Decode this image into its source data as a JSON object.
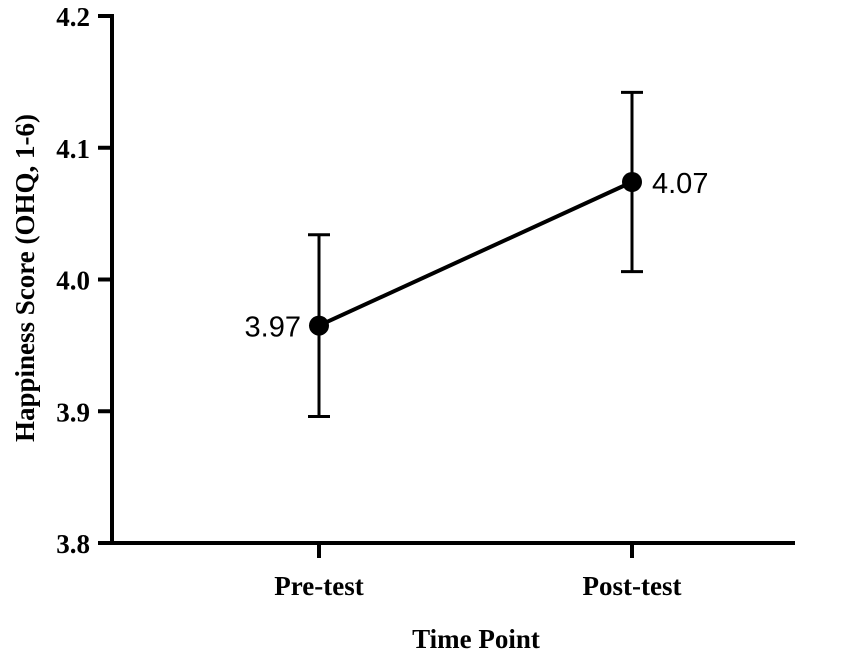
{
  "chart_data": {
    "type": "line",
    "title": "",
    "xlabel": "Time Point",
    "ylabel": "Happiness Score (OHQ, 1-6)",
    "ylim": [
      3.8,
      4.2
    ],
    "yticks": [
      "3.8",
      "3.9",
      "4.0",
      "4.1",
      "4.2"
    ],
    "categories": [
      "Pre-test",
      "Post-test"
    ],
    "series": [
      {
        "values": [
          3.965,
          4.074
        ],
        "error_low": [
          3.896,
          4.006
        ],
        "error_high": [
          4.034,
          4.142
        ],
        "data_labels": [
          "3.97",
          "4.07"
        ]
      }
    ],
    "grid": false,
    "legend": "none",
    "colors": {
      "line": "#000000",
      "marker": "#000000"
    }
  }
}
